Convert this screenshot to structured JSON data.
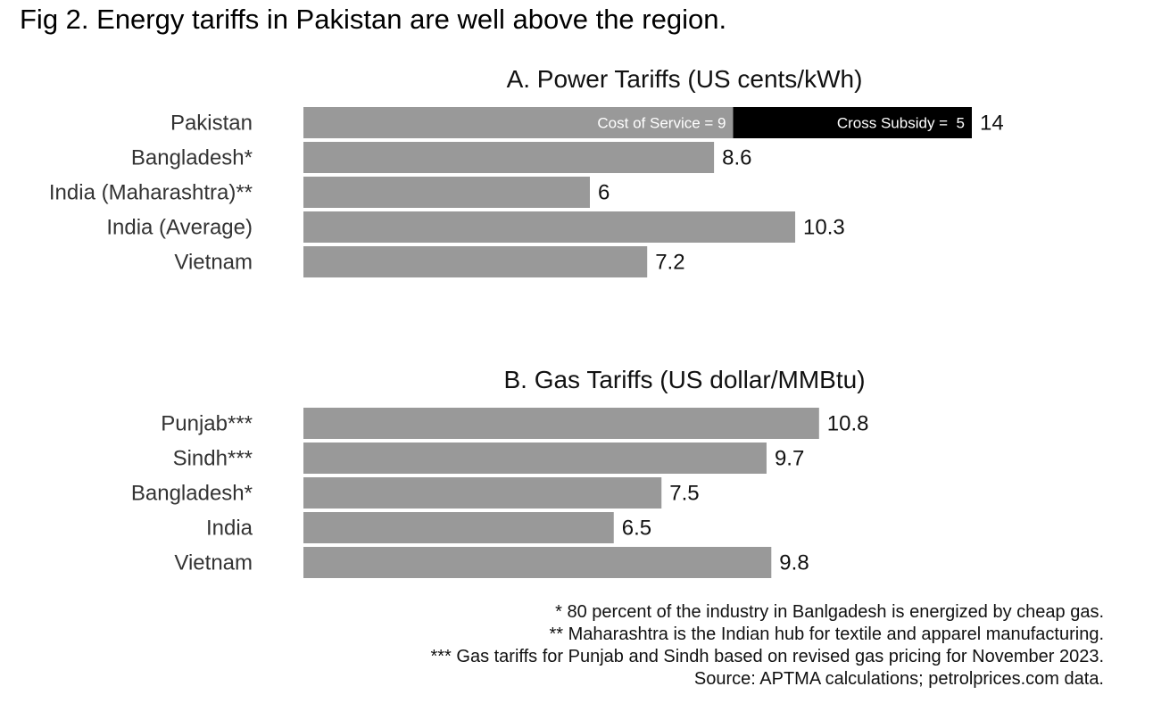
{
  "title": "Fig 2. Energy tariffs in Pakistan are well above the region.",
  "colors": {
    "bar": "#999999",
    "highlight": "#000000",
    "segment_text": "#ffffff"
  },
  "chart_data": [
    {
      "type": "bar",
      "orientation": "horizontal",
      "title": "A. Power Tariffs (US cents/kWh)",
      "categories": [
        "Pakistan",
        "Bangladesh*",
        "India (Maharashtra)**",
        "India (Average)",
        "Vietnam"
      ],
      "values": [
        14,
        8.6,
        6,
        10.3,
        7.2
      ],
      "value_labels": [
        "14",
        "8.6",
        "6",
        "10.3",
        "7.2"
      ],
      "stacked_breakdown": {
        "category": "Pakistan",
        "segments": [
          {
            "label": "Cost of Service = 9",
            "value": 9,
            "color": "#999999"
          },
          {
            "label": "Cross Subsidy =  5",
            "value": 5,
            "color": "#000000"
          }
        ]
      },
      "xlim": [
        0,
        14.8
      ]
    },
    {
      "type": "bar",
      "orientation": "horizontal",
      "title": "B. Gas Tariffs (US dollar/MMBtu)",
      "categories": [
        "Punjab***",
        "Sindh***",
        "Bangladesh*",
        "India",
        "Vietnam"
      ],
      "values": [
        10.8,
        9.7,
        7.5,
        6.5,
        9.8
      ],
      "value_labels": [
        "10.8",
        "9.7",
        "7.5",
        "6.5",
        "9.8"
      ],
      "xlim": [
        0,
        14.8
      ]
    }
  ],
  "notes": [
    "* 80 percent of the industry in Banlgadesh is energized by cheap gas.",
    "** Maharashtra is the Indian hub for textile and apparel manufacturing.",
    "*** Gas tariffs for Punjab and Sindh based on revised gas pricing for November 2023.",
    "Source: APTMA calculations; petrolprices.com data."
  ]
}
